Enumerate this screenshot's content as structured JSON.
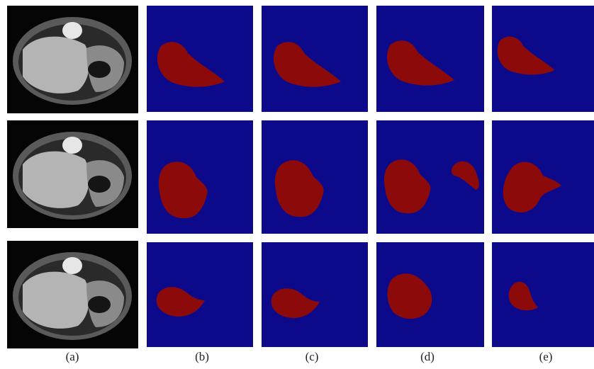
{
  "labels": [
    "(a)",
    "(b)",
    "(c)",
    "(d)",
    "(e)"
  ]
}
